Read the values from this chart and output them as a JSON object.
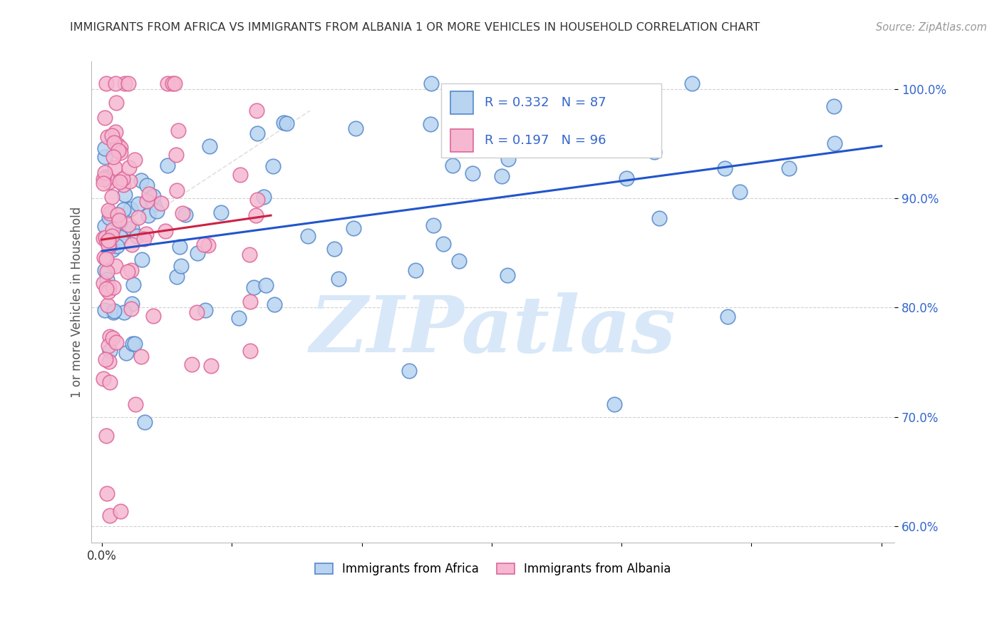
{
  "title": "IMMIGRANTS FROM AFRICA VS IMMIGRANTS FROM ALBANIA 1 OR MORE VEHICLES IN HOUSEHOLD CORRELATION CHART",
  "source": "Source: ZipAtlas.com",
  "ylabel": "1 or more Vehicles in Household",
  "africa_R": 0.332,
  "africa_N": 87,
  "albania_R": 0.197,
  "albania_N": 96,
  "blue_fill": "#b8d4f0",
  "blue_edge": "#5588cc",
  "pink_fill": "#f5b8d0",
  "pink_edge": "#dd6699",
  "trend_blue": "#2255cc",
  "trend_pink": "#cc2244",
  "ref_line_color": "#cccccc",
  "watermark": "ZIPatlas",
  "watermark_color": "#d8e8f8",
  "background": "#ffffff",
  "grid_color": "#cccccc",
  "title_color": "#333333",
  "source_color": "#999999",
  "ylabel_color": "#555555",
  "ytick_color": "#3366cc",
  "xtick_color": "#333333",
  "legend_edge_color": "#cccccc",
  "africa_legend": "Immigrants from Africa",
  "albania_legend": "Immigrants from Albania"
}
